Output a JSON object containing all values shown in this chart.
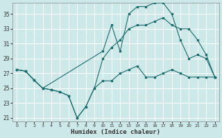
{
  "xlabel": "Humidex (Indice chaleur)",
  "bg_color": "#cce8e8",
  "grid_color": "#b8d8d8",
  "line_color": "#1a6b6b",
  "xlim": [
    -0.5,
    23.5
  ],
  "ylim": [
    20.5,
    36.5
  ],
  "yticks": [
    21,
    23,
    25,
    27,
    29,
    31,
    33,
    35
  ],
  "xticks": [
    0,
    1,
    2,
    3,
    4,
    5,
    6,
    7,
    8,
    9,
    10,
    11,
    12,
    13,
    14,
    15,
    16,
    17,
    18,
    19,
    20,
    21,
    22,
    23
  ],
  "line1_x": [
    0,
    1,
    2,
    3,
    4,
    5,
    6,
    7,
    8,
    9,
    10,
    11,
    12,
    13,
    14,
    15,
    16,
    17,
    18,
    19,
    20,
    21,
    22,
    23
  ],
  "line1_y": [
    27.5,
    27.3,
    26.1,
    25.0,
    24.8,
    24.5,
    24.0,
    21.0,
    22.5,
    25.0,
    26.0,
    26.0,
    27.0,
    27.5,
    28.0,
    26.5,
    26.5,
    27.0,
    27.5,
    27.0,
    26.5,
    26.5,
    26.5,
    26.5
  ],
  "line2_x": [
    0,
    1,
    2,
    3,
    10,
    11,
    12,
    13,
    14,
    15,
    16,
    17,
    18,
    19,
    20,
    21,
    22,
    23
  ],
  "line2_y": [
    27.5,
    27.3,
    26.1,
    25.0,
    30.0,
    33.5,
    30.0,
    35.0,
    36.0,
    36.0,
    36.5,
    36.5,
    35.0,
    31.5,
    29.0,
    29.5,
    29.0,
    26.5
  ],
  "line3_x": [
    0,
    1,
    2,
    3,
    4,
    5,
    6,
    7,
    8,
    9,
    10,
    11,
    12,
    13,
    14,
    15,
    16,
    17,
    18,
    19,
    20,
    21,
    22,
    23
  ],
  "line3_y": [
    27.5,
    27.3,
    26.1,
    25.0,
    24.8,
    24.5,
    24.0,
    21.0,
    22.5,
    25.0,
    29.0,
    30.5,
    31.5,
    33.0,
    33.5,
    33.5,
    34.0,
    34.5,
    33.5,
    33.0,
    33.0,
    31.5,
    29.5,
    26.5
  ]
}
